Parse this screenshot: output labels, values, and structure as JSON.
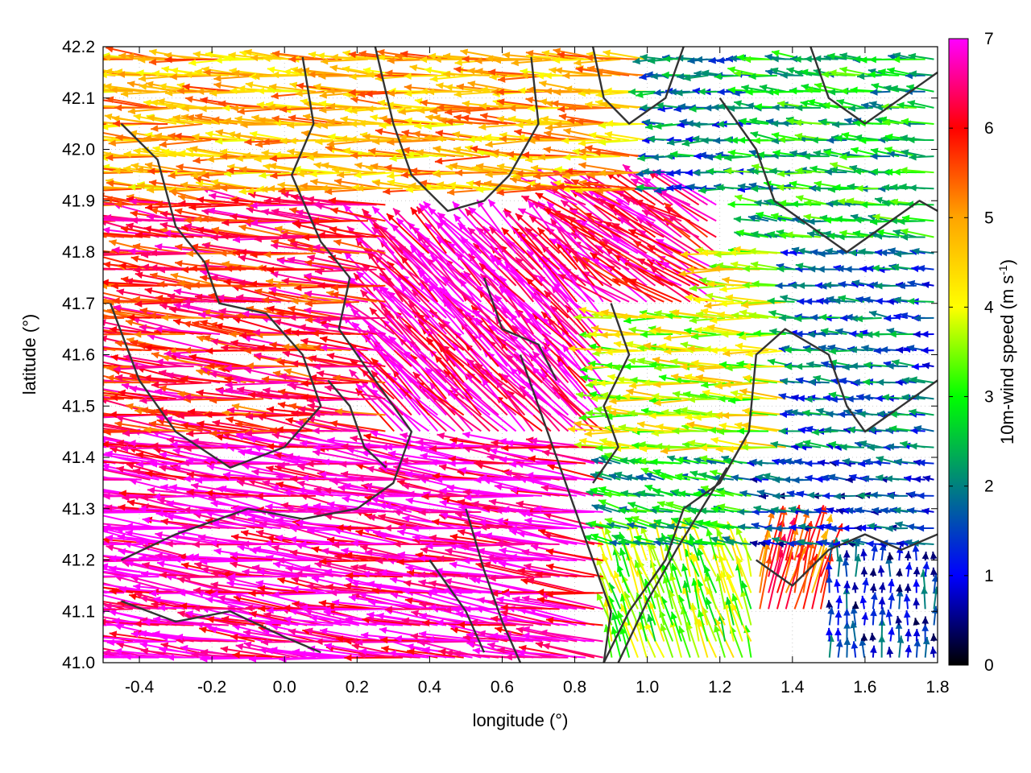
{
  "chart_data": {
    "type": "vector-field",
    "xlabel": "longitude (°)",
    "ylabel": "latitude (°)",
    "xlim": [
      -0.5,
      1.8
    ],
    "ylim": [
      41.0,
      42.2
    ],
    "x_ticks": [
      "-0.4",
      "-0.2",
      "0.0",
      "0.2",
      "0.4",
      "0.6",
      "0.8",
      "1.0",
      "1.2",
      "1.4",
      "1.6",
      "1.8"
    ],
    "y_ticks": [
      "41.0",
      "41.1",
      "41.2",
      "41.3",
      "41.4",
      "41.5",
      "41.6",
      "41.7",
      "41.8",
      "41.9",
      "42.0",
      "42.1",
      "42.2"
    ],
    "grid": true,
    "colorbar": {
      "label_main": "10m-wind speed (m s",
      "label_sup": "-1",
      "label_end": ")",
      "ticks": [
        "0",
        "1",
        "2",
        "3",
        "4",
        "5",
        "6",
        "7"
      ],
      "range": [
        0,
        7
      ],
      "colors": [
        "#000000",
        "#0000ff",
        "#008080",
        "#00ff00",
        "#ffff00",
        "#ffa500",
        "#ff0000",
        "#ff00ff"
      ]
    },
    "wind_regions": [
      {
        "lon": [
          -0.5,
          0.9
        ],
        "lat": [
          41.0,
          41.45
        ],
        "speed": 6.8,
        "u": -1.0,
        "v": 0.12
      },
      {
        "lon": [
          -0.5,
          0.3
        ],
        "lat": [
          41.45,
          41.9
        ],
        "speed": 6.0,
        "u": -1.0,
        "v": 0.1
      },
      {
        "lon": [
          0.3,
          0.9
        ],
        "lat": [
          41.45,
          41.8
        ],
        "speed": 6.8,
        "u": -0.7,
        "v": 0.7
      },
      {
        "lon": [
          0.8,
          1.2
        ],
        "lat": [
          41.7,
          41.9
        ],
        "speed": 6.5,
        "u": -0.85,
        "v": 0.5
      },
      {
        "lon": [
          -0.5,
          1.0
        ],
        "lat": [
          41.9,
          42.2
        ],
        "speed": 4.8,
        "u": -1.0,
        "v": 0.05
      },
      {
        "lon": [
          0.9,
          1.3
        ],
        "lat": [
          41.9,
          42.2
        ],
        "speed": 1.8,
        "u": -1.0,
        "v": 0.0
      },
      {
        "lon": [
          1.3,
          1.8
        ],
        "lat": [
          41.8,
          42.2
        ],
        "speed": 2.6,
        "u": -1.0,
        "v": 0.1
      },
      {
        "lon": [
          0.9,
          1.4
        ],
        "lat": [
          41.4,
          41.8
        ],
        "speed": 3.9,
        "u": -1.0,
        "v": 0.05
      },
      {
        "lon": [
          1.4,
          1.8
        ],
        "lat": [
          41.4,
          41.8
        ],
        "speed": 1.7,
        "u": -1.0,
        "v": 0.1
      },
      {
        "lon": [
          0.8,
          1.3
        ],
        "lat": [
          41.2,
          41.4
        ],
        "speed": 2.5,
        "u": -1.0,
        "v": 0.2
      },
      {
        "lon": [
          1.3,
          1.8
        ],
        "lat": [
          41.2,
          41.4
        ],
        "speed": 1.3,
        "u": -1.0,
        "v": 0.1
      },
      {
        "lon": [
          0.9,
          1.3
        ],
        "lat": [
          41.0,
          41.2
        ],
        "speed": 3.5,
        "u": -0.3,
        "v": 0.95
      },
      {
        "lon": [
          1.3,
          1.5
        ],
        "lat": [
          41.1,
          41.25
        ],
        "speed": 5.5,
        "u": 0.25,
        "v": 1.0
      },
      {
        "lon": [
          1.5,
          1.8
        ],
        "lat": [
          41.0,
          41.2
        ],
        "speed": 1.2,
        "u": 0.0,
        "v": 1.0
      }
    ],
    "contours": [
      [
        [
          -0.45,
          42.05
        ],
        [
          -0.35,
          41.98
        ],
        [
          -0.3,
          41.85
        ],
        [
          -0.22,
          41.78
        ],
        [
          -0.18,
          41.7
        ],
        [
          -0.05,
          41.68
        ],
        [
          0.05,
          41.6
        ],
        [
          0.1,
          41.5
        ],
        [
          0.0,
          41.42
        ],
        [
          -0.15,
          41.38
        ],
        [
          -0.3,
          41.45
        ],
        [
          -0.4,
          41.55
        ],
        [
          -0.48,
          41.7
        ]
      ],
      [
        [
          0.05,
          42.18
        ],
        [
          0.08,
          42.05
        ],
        [
          0.02,
          41.95
        ],
        [
          0.1,
          41.82
        ],
        [
          0.18,
          41.75
        ],
        [
          0.15,
          41.65
        ],
        [
          0.25,
          41.55
        ],
        [
          0.35,
          41.45
        ],
        [
          0.3,
          41.35
        ],
        [
          0.2,
          41.3
        ],
        [
          0.05,
          41.28
        ],
        [
          -0.1,
          41.3
        ],
        [
          -0.3,
          41.25
        ],
        [
          -0.45,
          41.2
        ]
      ],
      [
        [
          0.25,
          42.2
        ],
        [
          0.3,
          42.05
        ],
        [
          0.35,
          41.95
        ],
        [
          0.45,
          41.88
        ],
        [
          0.55,
          41.9
        ],
        [
          0.62,
          41.95
        ],
        [
          0.7,
          42.05
        ],
        [
          0.68,
          42.18
        ]
      ],
      [
        [
          0.4,
          41.2
        ],
        [
          0.5,
          41.1
        ],
        [
          0.55,
          41.02
        ]
      ],
      [
        [
          0.5,
          41.3
        ],
        [
          0.55,
          41.18
        ],
        [
          0.6,
          41.08
        ],
        [
          0.65,
          41.0
        ]
      ],
      [
        [
          0.65,
          41.6
        ],
        [
          0.7,
          41.5
        ],
        [
          0.75,
          41.4
        ],
        [
          0.8,
          41.3
        ],
        [
          0.85,
          41.2
        ],
        [
          0.9,
          41.1
        ],
        [
          0.88,
          41.0
        ]
      ],
      [
        [
          0.55,
          41.75
        ],
        [
          0.6,
          41.65
        ],
        [
          0.7,
          41.62
        ],
        [
          0.75,
          41.55
        ]
      ],
      [
        [
          0.88,
          41.0
        ],
        [
          0.95,
          41.1
        ],
        [
          1.05,
          41.2
        ],
        [
          1.1,
          41.3
        ],
        [
          1.2,
          41.35
        ],
        [
          1.28,
          41.45
        ],
        [
          1.3,
          41.6
        ],
        [
          1.38,
          41.65
        ],
        [
          1.5,
          41.6
        ],
        [
          1.55,
          41.5
        ],
        [
          1.6,
          41.45
        ],
        [
          1.7,
          41.5
        ],
        [
          1.8,
          41.55
        ]
      ],
      [
        [
          0.92,
          41.0
        ],
        [
          1.0,
          41.12
        ],
        [
          1.08,
          41.22
        ],
        [
          1.15,
          41.3
        ],
        [
          1.22,
          41.38
        ]
      ],
      [
        [
          0.9,
          41.7
        ],
        [
          0.95,
          41.6
        ],
        [
          0.88,
          41.5
        ],
        [
          0.92,
          41.42
        ],
        [
          0.85,
          41.35
        ]
      ],
      [
        [
          1.1,
          42.2
        ],
        [
          1.05,
          42.1
        ],
        [
          0.95,
          42.05
        ],
        [
          0.88,
          42.1
        ],
        [
          0.85,
          42.2
        ]
      ],
      [
        [
          1.2,
          42.1
        ],
        [
          1.3,
          42.0
        ],
        [
          1.35,
          41.9
        ],
        [
          1.45,
          41.85
        ],
        [
          1.55,
          41.8
        ],
        [
          1.65,
          41.85
        ],
        [
          1.75,
          41.9
        ],
        [
          1.8,
          41.88
        ]
      ],
      [
        [
          1.45,
          42.2
        ],
        [
          1.5,
          42.1
        ],
        [
          1.6,
          42.05
        ],
        [
          1.7,
          42.1
        ],
        [
          1.8,
          42.15
        ]
      ],
      [
        [
          1.3,
          41.2
        ],
        [
          1.4,
          41.15
        ],
        [
          1.5,
          41.22
        ],
        [
          1.6,
          41.25
        ],
        [
          1.7,
          41.22
        ],
        [
          1.8,
          41.25
        ]
      ],
      [
        [
          -0.45,
          41.12
        ],
        [
          -0.3,
          41.08
        ],
        [
          -0.15,
          41.1
        ],
        [
          0.0,
          41.05
        ],
        [
          0.1,
          41.02
        ]
      ],
      [
        [
          0.12,
          41.55
        ],
        [
          0.18,
          41.5
        ],
        [
          0.22,
          41.42
        ],
        [
          0.28,
          41.38
        ]
      ]
    ]
  }
}
